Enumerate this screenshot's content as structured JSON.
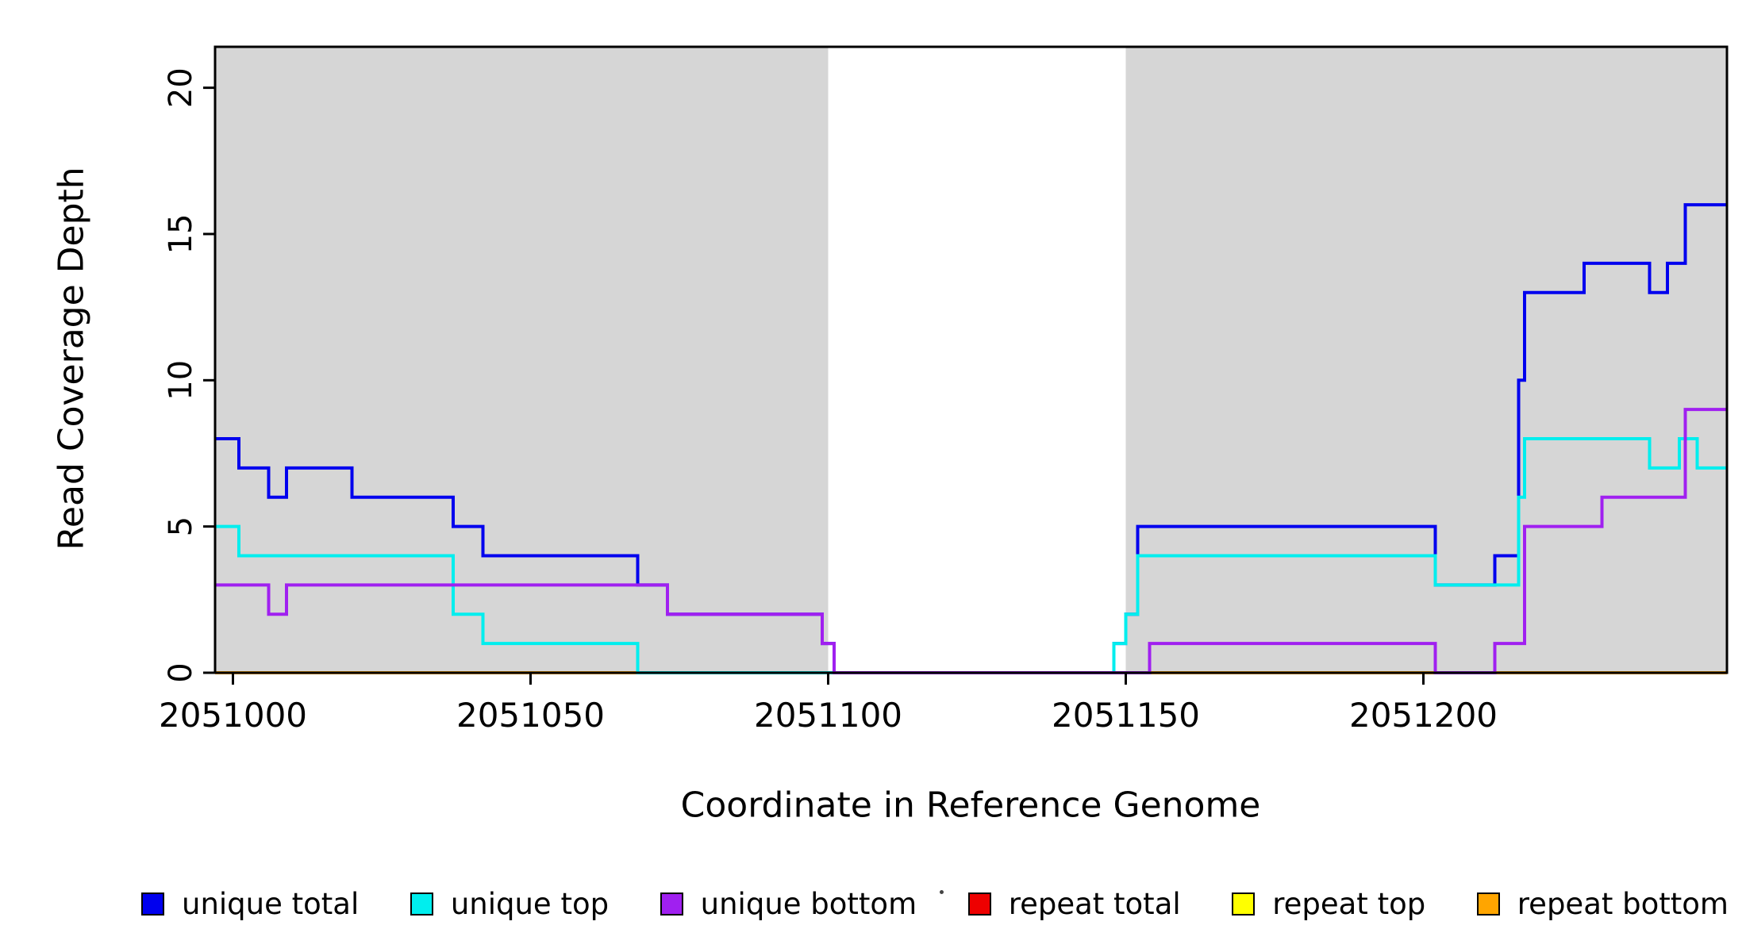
{
  "figure": {
    "background": "#ffffff"
  },
  "chart_data": {
    "type": "line",
    "style": "step",
    "title": "",
    "xlabel": "Coordinate in Reference Genome",
    "ylabel": "Read Coverage Depth",
    "xlim": [
      2050997,
      2051251
    ],
    "ylim": [
      0,
      21.4
    ],
    "x_ticks": [
      2051000,
      2051050,
      2051100,
      2051150,
      2051200
    ],
    "y_ticks": [
      0,
      5,
      10,
      15,
      20
    ],
    "grid": false,
    "legend_position": "bottom",
    "shade_color": "#d6d6d6",
    "shaded_regions": [
      {
        "x_start": 2050997,
        "x_end": 2051100
      },
      {
        "x_start": 2051150,
        "x_end": 2051251
      }
    ],
    "draw_order": [
      3,
      4,
      5,
      0,
      1,
      2
    ],
    "series": [
      {
        "name": "unique total",
        "color": "#0000EE",
        "steps": [
          [
            2050997,
            8
          ],
          [
            2051001,
            7
          ],
          [
            2051006,
            6
          ],
          [
            2051009,
            7
          ],
          [
            2051020,
            6
          ],
          [
            2051037,
            5
          ],
          [
            2051042,
            4
          ],
          [
            2051068,
            3
          ],
          [
            2051073,
            2
          ],
          [
            2051099,
            1
          ],
          [
            2051101,
            0
          ],
          [
            2051148,
            1
          ],
          [
            2051150,
            2
          ],
          [
            2051152,
            5
          ],
          [
            2051202,
            3
          ],
          [
            2051212,
            4
          ],
          [
            2051216,
            10
          ],
          [
            2051217,
            13
          ],
          [
            2051227,
            14
          ],
          [
            2051238,
            13
          ],
          [
            2051241,
            14
          ],
          [
            2051244,
            16
          ],
          [
            2051251,
            16
          ]
        ]
      },
      {
        "name": "unique top",
        "color": "#00EEEE",
        "steps": [
          [
            2050997,
            5
          ],
          [
            2051001,
            4
          ],
          [
            2051037,
            2
          ],
          [
            2051042,
            1
          ],
          [
            2051068,
            0
          ],
          [
            2051148,
            1
          ],
          [
            2051150,
            2
          ],
          [
            2051152,
            4
          ],
          [
            2051202,
            3
          ],
          [
            2051216,
            6
          ],
          [
            2051217,
            8
          ],
          [
            2051238,
            7
          ],
          [
            2051243,
            8
          ],
          [
            2051246,
            7
          ],
          [
            2051251,
            7
          ]
        ]
      },
      {
        "name": "unique bottom",
        "color": "#A020F0",
        "steps": [
          [
            2050997,
            3
          ],
          [
            2051006,
            2
          ],
          [
            2051009,
            3
          ],
          [
            2051073,
            2
          ],
          [
            2051099,
            1
          ],
          [
            2051101,
            0
          ],
          [
            2051154,
            1
          ],
          [
            2051202,
            0
          ],
          [
            2051212,
            1
          ],
          [
            2051217,
            5
          ],
          [
            2051230,
            6
          ],
          [
            2051244,
            9
          ],
          [
            2051251,
            9
          ]
        ]
      },
      {
        "name": "repeat total",
        "color": "#EE0000",
        "steps": [
          [
            2050997,
            0
          ],
          [
            2051251,
            0
          ]
        ]
      },
      {
        "name": "repeat top",
        "color": "#FFFF00",
        "steps": [
          [
            2050997,
            0
          ],
          [
            2051251,
            0
          ]
        ]
      },
      {
        "name": "repeat bottom",
        "color": "#FFA500",
        "steps": [
          [
            2050997,
            0
          ],
          [
            2051251,
            0
          ]
        ]
      }
    ]
  }
}
